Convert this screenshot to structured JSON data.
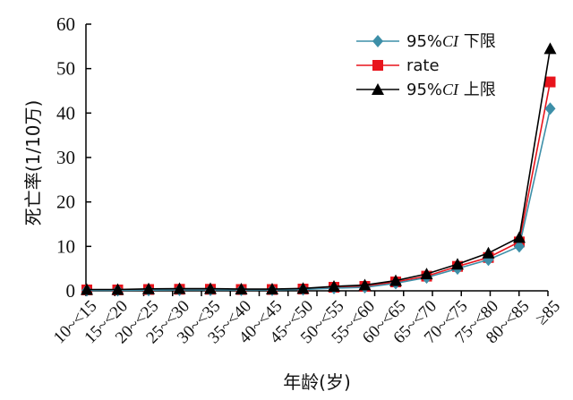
{
  "chart_data": {
    "type": "line",
    "xlabel": "年龄(岁)",
    "ylabel": "死亡率(1/10万)",
    "ylim": [
      0,
      60
    ],
    "yticks": [
      0,
      10,
      20,
      30,
      40,
      50,
      60
    ],
    "categories": [
      "10~<15",
      "15~<20",
      "20~<25",
      "25~<30",
      "30~<35",
      "35~<40",
      "40~<45",
      "45~<50",
      "50~<55",
      "55~<60",
      "60~<65",
      "65~<70",
      "70~<75",
      "75~<80",
      "80~<85",
      "≥85"
    ],
    "legend_position": "top-right",
    "grid": false,
    "series": [
      {
        "name": "95%CI 下限",
        "name_prefix": "95%",
        "name_italic": "CI",
        "name_suffix": " 下限",
        "color": "#3d8fa8",
        "marker": "diamond",
        "values": [
          0.1,
          0.1,
          0.15,
          0.2,
          0.2,
          0.2,
          0.2,
          0.3,
          0.6,
          0.8,
          1.7,
          3.0,
          5.0,
          7.0,
          10.0,
          41.0
        ]
      },
      {
        "name": "rate",
        "name_prefix": "rate",
        "name_italic": "",
        "name_suffix": "",
        "color": "#e8141c",
        "marker": "square",
        "values": [
          0.2,
          0.2,
          0.3,
          0.35,
          0.35,
          0.3,
          0.3,
          0.4,
          0.8,
          1.0,
          2.0,
          3.3,
          5.5,
          7.5,
          11.0,
          47.0
        ]
      },
      {
        "name": "95%CI 上限",
        "name_prefix": "95%",
        "name_italic": "CI",
        "name_suffix": " 上限",
        "color": "#000000",
        "marker": "triangle",
        "values": [
          0.3,
          0.3,
          0.45,
          0.5,
          0.5,
          0.4,
          0.4,
          0.55,
          1.0,
          1.3,
          2.3,
          3.8,
          6.0,
          8.5,
          12.0,
          54.5
        ]
      }
    ]
  }
}
